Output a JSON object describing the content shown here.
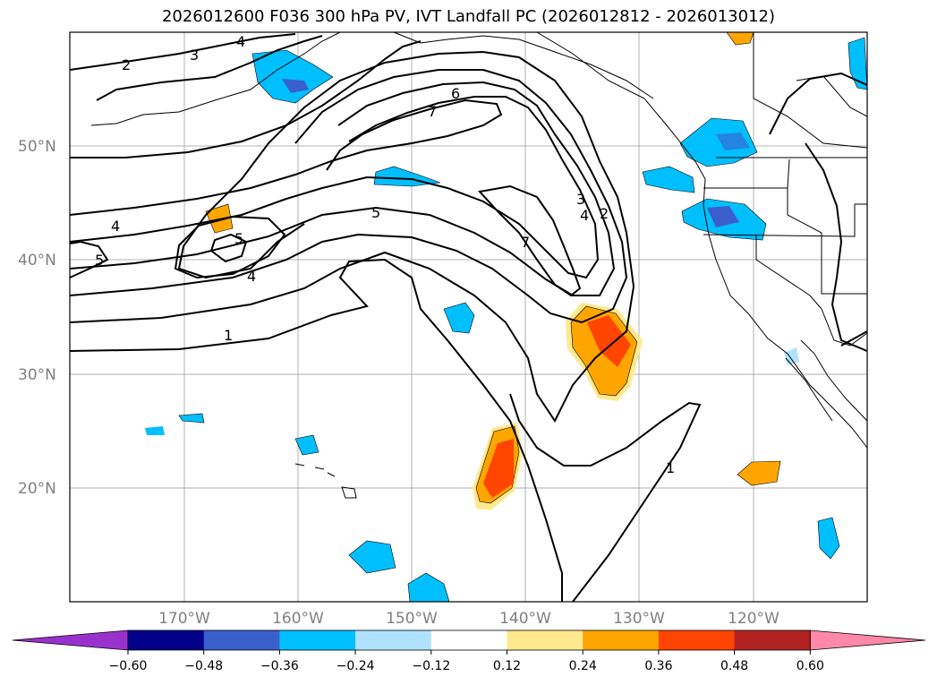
{
  "title": "2026012600 F036 300 hPa PV, IVT Landfall PC (2026012812 - 2026013012)",
  "map": {
    "lat_labels": [
      "50°N",
      "40°N",
      "30°N",
      "20°N"
    ],
    "lon_labels": [
      "170°W",
      "160°W",
      "150°W",
      "140°W",
      "130°W",
      "120°W"
    ],
    "contour_labels": [
      "4",
      "3",
      "2",
      "6",
      "7",
      "5",
      "4",
      "5",
      "4",
      "5",
      "1",
      "3",
      "4",
      "2",
      "7",
      "1"
    ],
    "colors": {
      "land_border": "#000000",
      "grid": "#b0b0b0"
    }
  },
  "colorbar": {
    "ticks": [
      "−0.60",
      "−0.48",
      "−0.36",
      "−0.24",
      "−0.12",
      "0.12",
      "0.24",
      "0.36",
      "0.48",
      "0.60"
    ],
    "colors": [
      "#9932cc",
      "#00008b",
      "#3a5fcd",
      "#00bfff",
      "#b0e2ff",
      "#ffffff",
      "#ffe98f",
      "#ffa500",
      "#ff4500",
      "#b22222",
      "#ff88aa"
    ]
  }
}
